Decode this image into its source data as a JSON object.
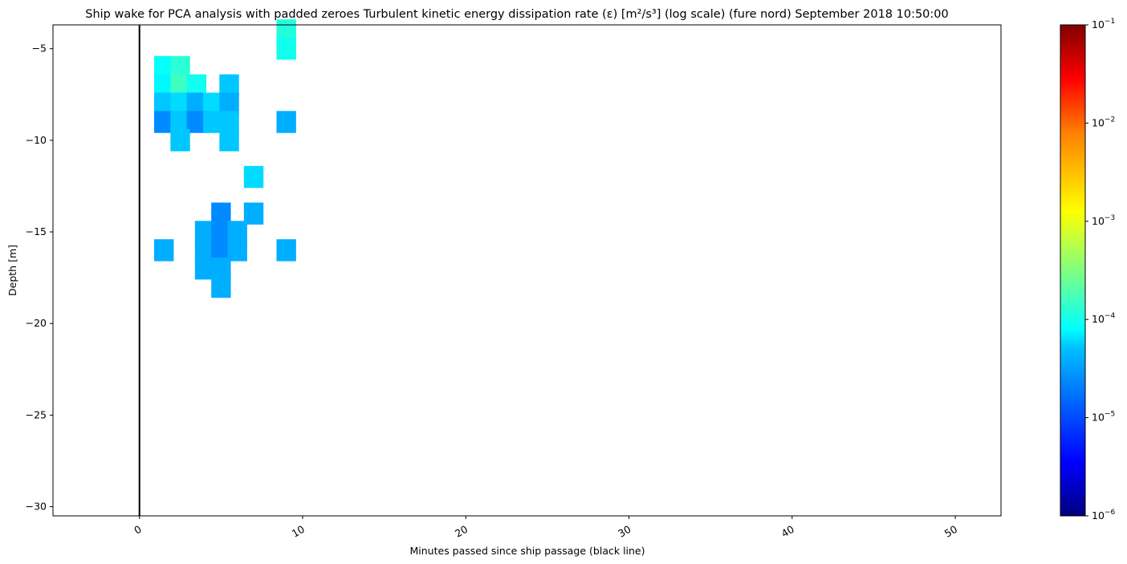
{
  "chart_data": {
    "type": "heatmap",
    "title": "Ship wake for PCA analysis with padded zeroes Turbulent kinetic energy dissipation rate (ε) [m²/s³] (log scale) (fure nord) September 2018 10:50:00",
    "xlabel": "Minutes passed since ship passage (black line)",
    "ylabel": "Depth [m]",
    "xlim": [
      -5.3,
      52.8
    ],
    "ylim": [
      -30.5,
      -3.7
    ],
    "x_ticks": [
      0,
      10,
      20,
      30,
      40,
      50
    ],
    "x_tick_labels": [
      "0",
      "10",
      "20",
      "30",
      "40",
      "50"
    ],
    "y_ticks": [
      -5,
      -10,
      -15,
      -20,
      -25,
      -30
    ],
    "y_tick_labels": [
      "−5",
      "−10",
      "−15",
      "−20",
      "−25",
      "−30"
    ],
    "ship_passage_x": 0,
    "colorbar": {
      "scale": "log",
      "colormap": "jet",
      "range": [
        1e-06,
        0.1
      ],
      "ticks": [
        1e-06,
        1e-05,
        0.0001,
        0.001,
        0.01,
        0.1
      ],
      "tick_bases": [
        "10",
        "10",
        "10",
        "10",
        "10",
        "10"
      ],
      "tick_exponents": [
        "−6",
        "−5",
        "−4",
        "−3",
        "−2",
        "−1"
      ]
    },
    "grid": false,
    "cells": [
      {
        "x": 9.0,
        "y": -4.0,
        "value": 0.00011
      },
      {
        "x": 9.0,
        "y": -5.0,
        "value": 9e-05
      },
      {
        "x": 1.5,
        "y": -6.0,
        "value": 8e-05
      },
      {
        "x": 2.5,
        "y": -6.0,
        "value": 0.00012
      },
      {
        "x": 1.5,
        "y": -7.0,
        "value": 7e-05
      },
      {
        "x": 2.5,
        "y": -7.0,
        "value": 0.00015
      },
      {
        "x": 3.5,
        "y": -7.0,
        "value": 9e-05
      },
      {
        "x": 5.5,
        "y": -7.0,
        "value": 4e-05
      },
      {
        "x": 1.5,
        "y": -8.0,
        "value": 4e-05
      },
      {
        "x": 2.5,
        "y": -8.0,
        "value": 5e-05
      },
      {
        "x": 3.5,
        "y": -8.0,
        "value": 3e-05
      },
      {
        "x": 4.5,
        "y": -8.0,
        "value": 5e-05
      },
      {
        "x": 5.5,
        "y": -8.0,
        "value": 3e-05
      },
      {
        "x": 1.5,
        "y": -9.0,
        "value": 2e-05
      },
      {
        "x": 2.5,
        "y": -9.0,
        "value": 4e-05
      },
      {
        "x": 3.5,
        "y": -9.0,
        "value": 2e-05
      },
      {
        "x": 4.5,
        "y": -9.0,
        "value": 4e-05
      },
      {
        "x": 5.5,
        "y": -9.0,
        "value": 4e-05
      },
      {
        "x": 9.0,
        "y": -9.0,
        "value": 3e-05
      },
      {
        "x": 2.5,
        "y": -10.0,
        "value": 4e-05
      },
      {
        "x": 5.5,
        "y": -10.0,
        "value": 4e-05
      },
      {
        "x": 7.0,
        "y": -12.0,
        "value": 5e-05
      },
      {
        "x": 5.0,
        "y": -14.0,
        "value": 2e-05
      },
      {
        "x": 7.0,
        "y": -14.0,
        "value": 3e-05
      },
      {
        "x": 4.0,
        "y": -15.0,
        "value": 3e-05
      },
      {
        "x": 5.0,
        "y": -15.0,
        "value": 2e-05
      },
      {
        "x": 6.0,
        "y": -15.0,
        "value": 3e-05
      },
      {
        "x": 4.0,
        "y": -16.0,
        "value": 3e-05
      },
      {
        "x": 5.0,
        "y": -16.0,
        "value": 2e-05
      },
      {
        "x": 6.0,
        "y": -16.0,
        "value": 3e-05
      },
      {
        "x": 1.5,
        "y": -16.0,
        "value": 3e-05
      },
      {
        "x": 9.0,
        "y": -16.0,
        "value": 3e-05
      },
      {
        "x": 4.0,
        "y": -17.0,
        "value": 3e-05
      },
      {
        "x": 5.0,
        "y": -17.0,
        "value": 3e-05
      },
      {
        "x": 5.0,
        "y": -18.0,
        "value": 3e-05
      }
    ]
  }
}
